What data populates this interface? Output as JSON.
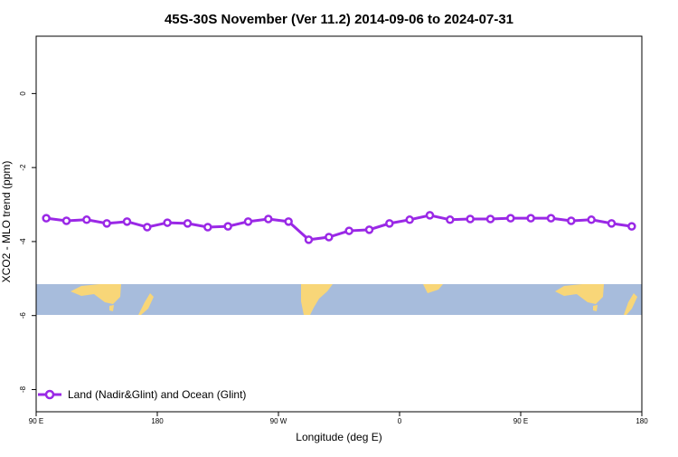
{
  "chart_data": {
    "type": "line",
    "title": "45S-30S November (Ver 11.2)   2014-09-06 to 2024-07-31",
    "x_label": "Longitude (deg E)",
    "y_label": "XCO2 - MLO trend (ppm)",
    "x": [
      97.5,
      112.5,
      127.5,
      142.5,
      157.5,
      172.5,
      187.5,
      202.5,
      217.5,
      232.5,
      247.5,
      262.5,
      277.5,
      292.5,
      307.5,
      322.5,
      337.5,
      352.5,
      367.5,
      382.5,
      397.5,
      412.5,
      427.5,
      442.5,
      457.5,
      472.5,
      487.5,
      502.5,
      517.5,
      532.5
    ],
    "series": [
      {
        "name": "Land (Nadir&Glint) and Ocean (Glint)",
        "color": "#9a28e6",
        "values": [
          -3.37,
          -3.44,
          -3.41,
          -3.51,
          -3.46,
          -3.61,
          -3.49,
          -3.51,
          -3.61,
          -3.59,
          -3.46,
          -3.39,
          -3.46,
          -3.95,
          -3.88,
          -3.71,
          -3.68,
          -3.51,
          -3.41,
          -3.29,
          -3.41,
          -3.39,
          -3.39,
          -3.37,
          -3.37,
          -3.37,
          -3.44,
          -3.41,
          -3.51,
          -3.59
        ]
      }
    ],
    "xlim": [
      90,
      540
    ],
    "xticks": [
      {
        "value": 90,
        "label": "90 E"
      },
      180,
      {
        "value": 270,
        "label": "90 W"
      },
      {
        "value": 360,
        "label": "0"
      },
      {
        "value": 450,
        "label": "90 E"
      },
      {
        "value": 540,
        "label": "180"
      }
    ],
    "ylim": [
      -8.6,
      1.55
    ],
    "yticks": [
      -8,
      -6,
      -4,
      -2,
      0
    ],
    "legend": "bottom-left"
  }
}
